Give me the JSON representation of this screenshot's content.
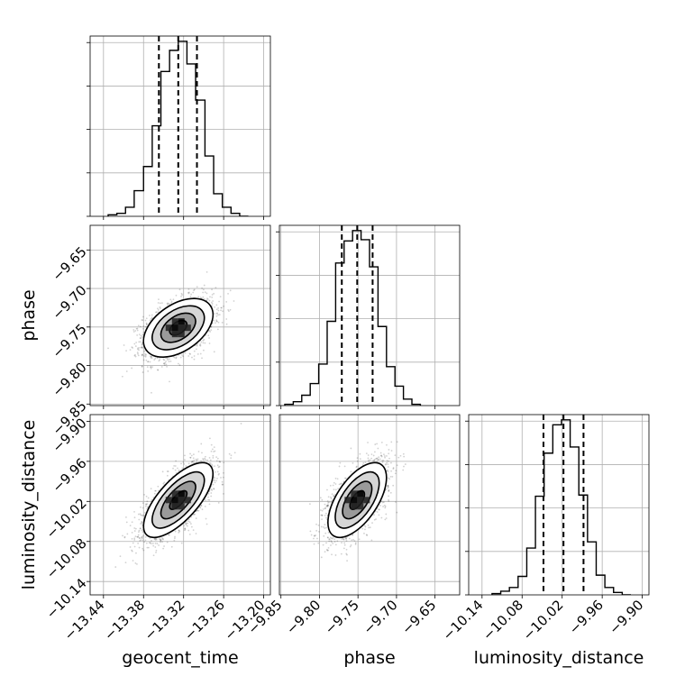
{
  "chart_data": {
    "type": "corner",
    "parameters": [
      "geocent_time",
      "phase",
      "luminosity_distance"
    ],
    "grid": true,
    "ranges": {
      "geocent_time": [
        -13.46,
        -13.19
      ],
      "phase": [
        -9.852,
        -9.618
      ],
      "luminosity_distance": [
        -10.16,
        -9.89
      ]
    },
    "ticks": {
      "geocent_time": [
        "−13.44",
        "−13.38",
        "−13.32",
        "−13.26",
        "−13.20"
      ],
      "phase": [
        "−9.85",
        "−9.80",
        "−9.75",
        "−9.70",
        "−9.65"
      ],
      "luminosity_distance": [
        "−10.14",
        "−10.08",
        "−10.02",
        "−9.96",
        "−9.90"
      ]
    },
    "tick_values": {
      "geocent_time": [
        -13.44,
        -13.38,
        -13.32,
        -13.26,
        -13.2
      ],
      "phase": [
        -9.85,
        -9.8,
        -9.75,
        -9.7,
        -9.65
      ],
      "luminosity_distance": [
        -10.14,
        -10.08,
        -10.02,
        -9.96,
        -9.9
      ]
    },
    "quantiles": {
      "geocent_time": [
        -13.357,
        -13.328,
        -13.3
      ],
      "phase": [
        -9.771,
        -9.751,
        -9.731
      ],
      "luminosity_distance": [
        -10.048,
        -10.018,
        -9.988
      ]
    },
    "histograms": {
      "geocent_time": {
        "edges": [
          -13.433,
          -13.42,
          -13.407,
          -13.394,
          -13.38,
          -13.367,
          -13.354,
          -13.341,
          -13.328,
          -13.315,
          -13.302,
          -13.288,
          -13.275,
          -13.262,
          -13.249,
          -13.236,
          -13.223
        ],
        "counts": [
          1,
          2,
          6,
          17,
          33,
          60,
          96,
          110,
          116,
          101,
          77,
          40,
          15,
          6,
          2,
          0
        ]
      },
      "phase": {
        "edges": [
          -9.845,
          -9.834,
          -9.823,
          -9.812,
          -9.801,
          -9.79,
          -9.779,
          -9.768,
          -9.757,
          -9.746,
          -9.735,
          -9.724,
          -9.713,
          -9.702,
          -9.691,
          -9.68,
          -9.669
        ],
        "counts": [
          1,
          3,
          8,
          17,
          32,
          65,
          110,
          127,
          135,
          128,
          107,
          61,
          30,
          15,
          5,
          1
        ]
      },
      "luminosity_distance": {
        "edges": [
          -10.125,
          -10.112,
          -10.099,
          -10.086,
          -10.073,
          -10.06,
          -10.047,
          -10.034,
          -10.021,
          -10.008,
          -9.995,
          -9.982,
          -9.969,
          -9.956,
          -9.943,
          -9.93,
          -9.917
        ],
        "counts": [
          1,
          3,
          6,
          15,
          38,
          80,
          115,
          138,
          142,
          120,
          81,
          43,
          16,
          6,
          2,
          0
        ]
      }
    },
    "pairs": [
      {
        "x": "geocent_time",
        "y": "phase",
        "mean": [
          -13.328,
          -9.751
        ],
        "sd": [
          0.026,
          0.019
        ],
        "rho": 0.45
      },
      {
        "x": "geocent_time",
        "y": "luminosity_distance",
        "mean": [
          -13.328,
          -10.018
        ],
        "sd": [
          0.026,
          0.028
        ],
        "rho": 0.7
      },
      {
        "x": "phase",
        "y": "luminosity_distance",
        "mean": [
          -9.751,
          -10.018
        ],
        "sd": [
          0.019,
          0.028
        ],
        "rho": 0.6
      }
    ]
  }
}
